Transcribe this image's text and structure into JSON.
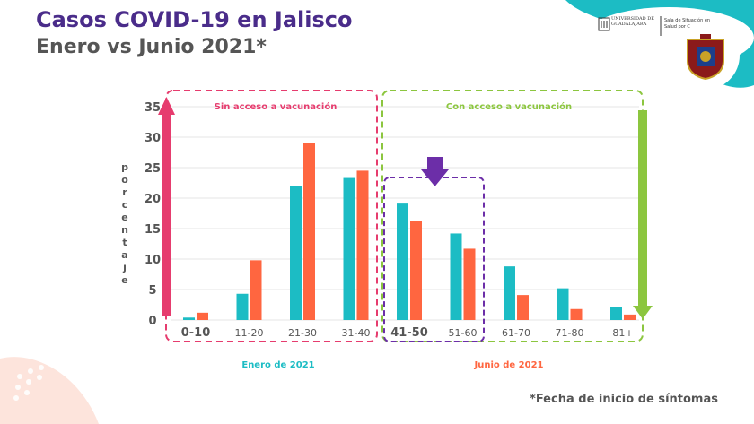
{
  "header": {
    "title": "Casos COVID-19 en Jalisco",
    "subtitle": "Enero vs Junio 2021*",
    "logo_text": "UNIVERSIDAD DE GUADALAJARA",
    "sala_text": "Sala de Situación en Salud por C"
  },
  "chart_data": {
    "type": "bar",
    "ylabel": "porcentaje",
    "ylabel_letters": [
      "p",
      "o",
      "r",
      "c",
      "e",
      "n",
      "t",
      "a",
      "j",
      "e"
    ],
    "ylim": [
      0,
      35
    ],
    "yticks": [
      0,
      5,
      10,
      15,
      20,
      25,
      30,
      35
    ],
    "categories": [
      "0-10",
      "11-20",
      "21-30",
      "31-40",
      "41-50",
      "51-60",
      "61-70",
      "71-80",
      "81+"
    ],
    "series": [
      {
        "name": "Enero de 2021",
        "color": "#1cbcc4",
        "values": [
          0.4,
          4.3,
          22.0,
          23.3,
          19.1,
          14.2,
          8.8,
          5.2,
          2.1
        ]
      },
      {
        "name": "Junio de 2021",
        "color": "#ff6640",
        "values": [
          1.2,
          9.8,
          29.0,
          24.5,
          16.2,
          11.7,
          4.1,
          1.8,
          0.9
        ]
      }
    ],
    "annotations": {
      "left_group": "Sin acceso a vacunación",
      "right_group": "Con acceso a vacunación",
      "legend_left": "Enero de 2021",
      "legend_right": "Junio de 2021"
    }
  },
  "colors": {
    "purple": "#6c2ea8",
    "pink": "#e63c6e",
    "green": "#8cc63f",
    "teal": "#1cbcc4",
    "orange": "#ff6640"
  },
  "footnote": "*Fecha de inicio de síntomas"
}
